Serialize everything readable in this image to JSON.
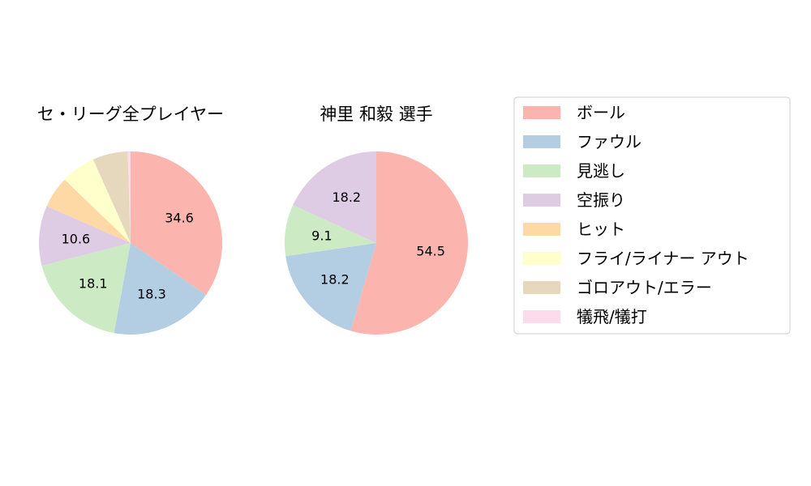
{
  "chart_data": {
    "type": "pie",
    "legend": {
      "placement": "right",
      "entries": [
        {
          "label": "ボール",
          "color": "#fbb4ae"
        },
        {
          "label": "ファウル",
          "color": "#b3cde3"
        },
        {
          "label": "見逃し",
          "color": "#ccebc5"
        },
        {
          "label": "空振り",
          "color": "#decbe4"
        },
        {
          "label": "ヒット",
          "color": "#fed9a6"
        },
        {
          "label": "フライ/ライナー アウト",
          "color": "#ffffcc"
        },
        {
          "label": "ゴロアウト/エラー",
          "color": "#e5d8bd"
        },
        {
          "label": "犠飛/犠打",
          "color": "#fddaec"
        }
      ]
    },
    "pies": [
      {
        "title": "セ・リーグ全プレイヤー",
        "values": [
          34.6,
          18.3,
          18.1,
          10.6,
          5.6,
          6.1,
          6.2,
          0.5
        ],
        "labels": [
          "34.6",
          "18.3",
          "18.1",
          "10.6",
          "",
          "",
          "",
          ""
        ]
      },
      {
        "title": "神里 和毅  選手",
        "values": [
          54.5,
          18.2,
          9.1,
          18.2,
          0,
          0,
          0,
          0
        ],
        "labels": [
          "54.5",
          "18.2",
          "9.1",
          "18.2",
          "",
          "",
          "",
          ""
        ]
      }
    ]
  }
}
